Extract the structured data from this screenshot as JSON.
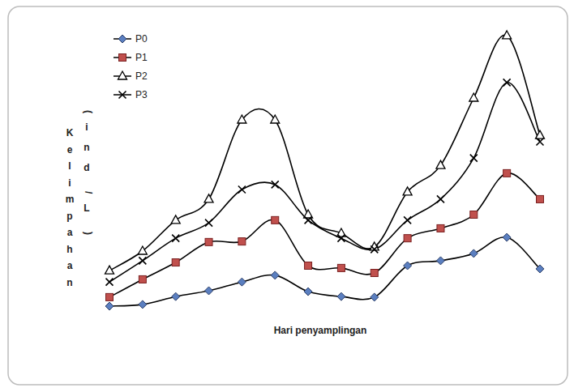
{
  "chart_data": {
    "type": "line",
    "x_label": "Hari penyamplingan",
    "y_label": "Kelimpahan (ind/L)",
    "categories": [
      null,
      null,
      null,
      null,
      null,
      null,
      null,
      null,
      null,
      null,
      null,
      null,
      null,
      null
    ],
    "ylim": [
      0,
      100
    ],
    "tick_labels": false,
    "grid": false,
    "legend": "upper-left",
    "line_style": "smooth",
    "series": [
      {
        "name": "P0",
        "color": "#5b7fc0",
        "marker": "diamond",
        "values": [
          6.1,
          6.7,
          9.4,
          11.4,
          14.4,
          16.7,
          11.1,
          9.4,
          9.2,
          20,
          21.7,
          24.2,
          29.7,
          18.9
        ]
      },
      {
        "name": "P1",
        "color": "#c0504d",
        "marker": "square",
        "values": [
          9.2,
          15.3,
          21.1,
          28.1,
          28.3,
          35.6,
          20,
          19.2,
          17.5,
          29.4,
          32.8,
          37.5,
          51.7,
          42.8
        ]
      },
      {
        "name": "P2",
        "color": "#ffffff",
        "marker": "triangle",
        "values": [
          18.3,
          25,
          35.6,
          42.8,
          70,
          70,
          37.5,
          31.1,
          26.4,
          45.3,
          54.4,
          77.5,
          98.9,
          64.7
        ]
      },
      {
        "name": "P3",
        "color": "#000000",
        "marker": "x",
        "values": [
          14.4,
          21.7,
          29.4,
          34.7,
          46.1,
          47.8,
          35.6,
          29.4,
          25.6,
          35.6,
          42.8,
          56.9,
          82.8,
          62.5
        ]
      }
    ]
  }
}
